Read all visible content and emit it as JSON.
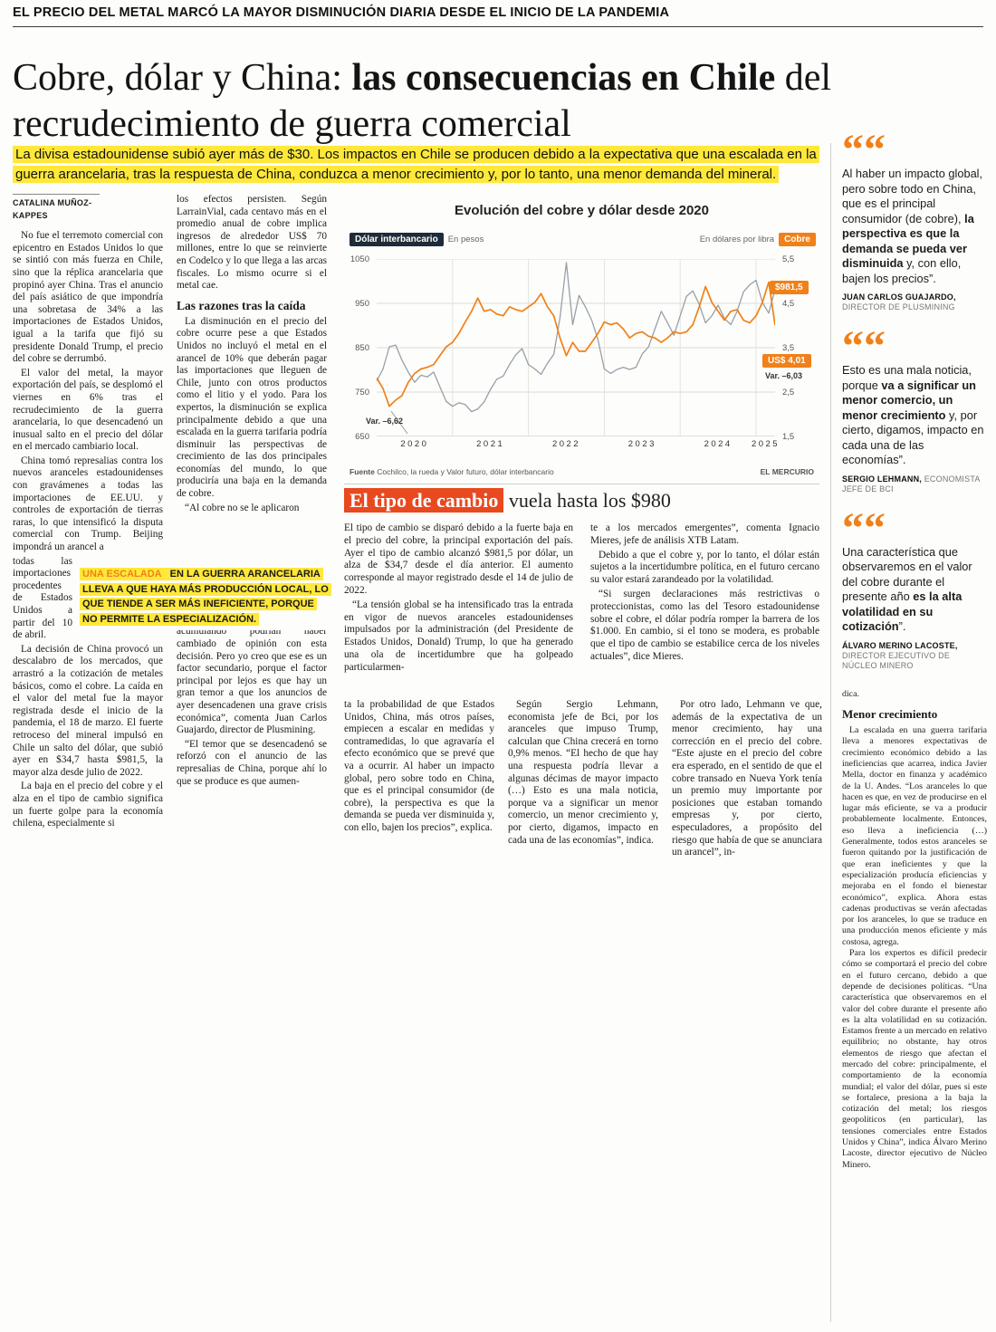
{
  "colors": {
    "accent_orange": "#f08019",
    "highlight_yellow": "#ffe83a",
    "title_red": "#e8491f",
    "dolar_gray": "#97a0a8"
  },
  "icons": {
    "quote": "“"
  },
  "page": {
    "kicker": "EL PRECIO DEL METAL MARCÓ LA MAYOR DISMINUCIÓN DIARIA DESDE EL INICIO DE LA PANDEMIA",
    "headline": {
      "part1": "Cobre, dólar y China: ",
      "part2": "las consecuencias en Chile",
      "part3": " del recrudecimiento de guerra comercial"
    },
    "lede": "La divisa estadounidense subió ayer más de $30. Los impactos en Chile se producen debido a la expectativa que una escalada en la guerra arancelaria, tras la respuesta de China, conduzca a menor crecimiento y, por lo tanto, una menor demanda del mineral.",
    "byline": "CATALINA MUÑOZ-KAPPES"
  },
  "article": {
    "col1": {
      "p1": "No fue el terremoto comercial con epicentro en Estados Unidos lo que se sintió con más fuerza en Chile, sino que la réplica arancelaria que propinó ayer China. Tras el anuncio del país asiático de que impondría una sobretasa de 34% a las importaciones de Estados Unidos, igual a la tarifa que fijó su presidente Donald Trump, el precio del cobre se derrumbó.",
      "p2": "El valor del metal, la mayor exportación del país, se desplomó el viernes en 6% tras el recrudecimiento de la guerra arancelaria, lo que desencadenó un inusual salto en el precio del dólar en el mercado cambiario local.",
      "p3a": "China tomó represalias contra los nuevos aranceles estadounidenses con gravámenes a todas las importaciones de EE.UU. y controles de exportación de tierras raras, lo que intensificó la disputa comercial con Trump. Beijing impondrá un arancel a",
      "p3b": "todas las importaciones procedentes de Estados Unidos a partir del 10 de abril.",
      "p4": "La decisión de China provocó un descalabro de los mercados, que arrastró a la cotización de metales básicos, como el cobre. La caída en el valor del metal fue la mayor registrada desde el inicio de la pandemia, el 18 de marzo. El fuerte retroceso del mineral impulsó en Chile un salto del dólar, que subió ayer en $34,7 hasta $981,5, la mayor alza desde julio de 2022.",
      "p5": "La baja en el precio del cobre y el alza en el tipo de cambio significa un fuerte golpe para la economía chilena, especialmente si"
    },
    "col2": {
      "p1": "los efectos persisten. Según LarrainVial, cada centavo más en el promedio anual de cobre implica ingresos de alrededor US$ 70 millones, entre lo que se reinvierte en Codelco y lo que llega a las arcas fiscales. Lo mismo ocurre si el metal cae.",
      "subhead": "Las razones tras la caída",
      "p2": "La disminución en el precio del cobre ocurre pese a que Estados Unidos no incluyó el metal en el arancel de 10% que deberán pagar las importaciones que lleguen de Chile, junto con otros productos como el litio y el yodo. Para los expertos, la disminución se explica principalmente debido a que una escalada en la guerra tarifaria podría disminuir las perspectivas de crecimiento de las dos principales economías del mundo, lo que produciría una baja en la demanda de cobre.",
      "p3": "“Al cobre no se le aplicaron",
      "p4": "aranceles, por lo tanto los compradores que estaban acumulando podrían haber cambiado de opinión con esta decisión. Pero yo creo que ese es un factor secundario, porque el factor principal por lejos es que hay un gran temor a que los anuncios de ayer desencadenen una grave crisis económica”, comenta Juan Carlos Guajardo, director de Plusmining.",
      "p5": "“El temor que se desencadenó se reforzó con el anuncio de las represalias de China, porque ahí lo que se produce es que aumen-"
    },
    "inset": {
      "highlight": "UNA ESCALADA",
      "rest": " EN LA GUERRA ARANCELARIA LLEVA A QUE HAYA MÁS PRODUCCIÓN LOCAL, LO QUE TIENDE A SER MÁS INEFICIENTE, PORQUE NO PERMITE LA ESPECIALIZACIÓN."
    },
    "cont1": "ta la probabilidad de que Estados Unidos, China, más otros países, empiecen a escalar en medidas y contramedidas, lo que agravaría el efecto económico que se prevé que va a ocurrir. Al haber un impacto global, pero sobre todo en China, que es el principal consumidor (de cobre), la perspectiva es que la demanda se pueda ver disminuida y, con ello, bajen los precios”, explica.",
    "cont2": "Según Sergio Lehmann, economista jefe de Bci, por los aranceles que impuso Trump, calculan que China crecerá en torno 0,9% menos. “El hecho de que hay una respuesta podría llevar a algunas décimas de mayor impacto (…) Esto es una mala noticia, porque va a significar un menor comercio, un menor crecimiento y, por cierto, digamos, impacto en cada una de las economías”, indica.",
    "cont3": "Por otro lado, Lehmann ve que, además de la expectativa de un menor crecimiento, hay una corrección en el precio del cobre. “Este ajuste en el precio del cobre era esperado, en el sentido de que el cobre transado en Nueva York tenía un premio muy importante por posiciones que estaban tomando empresas y, por cierto, especuladores, a propósito del riesgo que había de que se anunciara un arancel”, in-"
  },
  "chart": {
    "title": "Evolución del cobre y dólar desde 2020",
    "legend_left": {
      "label": "Dólar interbancario",
      "sub": "En pesos"
    },
    "legend_right": {
      "sub": "En dólares por libra",
      "label": "Cobre"
    },
    "callout_dolar": "$981,5",
    "callout_cobre": "US$ 4,01",
    "var_cobre": "Var. –6,03",
    "var_2020": "Var. –6,62",
    "source_bold": "Fuente",
    "source_rest": " Cochilco, la rueda y Valor futuro, dólar interbancario",
    "credit": "EL MERCURIO"
  },
  "chart_data": {
    "type": "line",
    "title": "Evolución del cobre y dólar desde 2020",
    "x_ticks": [
      "2020",
      "2021",
      "2022",
      "2023",
      "2024",
      "2025"
    ],
    "points_per_year": 12,
    "axis_left": {
      "label": "En pesos",
      "min": 650,
      "max": 1050,
      "tick_values": [
        1050,
        950,
        850,
        750,
        650
      ],
      "tick_labels": [
        "1050",
        "950",
        "850",
        "750",
        "650"
      ]
    },
    "axis_right": {
      "label": "En dólares por libra",
      "min": 1.5,
      "max": 5.5,
      "tick_values": [
        5.5,
        4.5,
        3.5,
        2.5,
        1.5
      ],
      "tick_labels": [
        "5,5",
        "4,5",
        "3,5",
        "2,5",
        "1,5"
      ]
    },
    "grid": true,
    "legend_position": "top",
    "annotations": [
      {
        "text": "Var. –6,62",
        "target": "Cobre caída 18 de marzo de 2020"
      },
      {
        "text": "Var. –6,03",
        "target": "Cobre variación diaria actual"
      }
    ],
    "series": [
      {
        "name": "Dólar interbancario",
        "axis": "left",
        "color": "#97a0a8",
        "width": 1.3,
        "last_value_label": "$981,5",
        "values": [
          775,
          802,
          852,
          856,
          822,
          795,
          772,
          788,
          784,
          795,
          762,
          729,
          718,
          726,
          722,
          706,
          712,
          728,
          756,
          779,
          786,
          812,
          834,
          848,
          812,
          802,
          790,
          815,
          835,
          918,
          1042,
          902,
          968,
          942,
          912,
          868,
          802,
          792,
          801,
          806,
          801,
          806,
          836,
          852,
          892,
          932,
          906,
          878,
          922,
          966,
          978,
          948,
          906,
          922,
          946,
          916,
          902,
          932,
          976,
          992,
          1002,
          952,
          928,
          981.5
        ]
      },
      {
        "name": "Cobre",
        "axis": "right",
        "color": "#f08019",
        "width": 1.7,
        "last_value_label": "US$ 4,01",
        "values": [
          2.82,
          2.58,
          2.18,
          2.32,
          2.42,
          2.72,
          2.92,
          3.02,
          3.06,
          3.12,
          3.32,
          3.52,
          3.62,
          3.82,
          4.08,
          4.32,
          4.62,
          4.32,
          4.36,
          4.26,
          4.22,
          4.42,
          4.36,
          4.32,
          4.42,
          4.52,
          4.72,
          4.42,
          4.22,
          3.72,
          3.32,
          3.62,
          3.42,
          3.42,
          3.62,
          3.82,
          4.08,
          4.02,
          4.06,
          3.92,
          3.72,
          3.82,
          3.86,
          3.76,
          3.72,
          3.62,
          3.72,
          3.86,
          3.82,
          3.86,
          4.02,
          4.42,
          4.88,
          4.52,
          4.32,
          4.12,
          4.32,
          4.36,
          4.12,
          4.06,
          4.22,
          4.52,
          4.98,
          4.01
        ]
      }
    ]
  },
  "subarticle": {
    "title_highlight": "El tipo de cambio",
    "title_rest": " vuela hasta los $980",
    "col1a": "El tipo de cambio se disparó debido a la fuerte baja en el precio del cobre, la principal exportación del país. Ayer el tipo de cambio alcanzó $981,5 por dólar, un alza de $34,7 desde el día anterior. El aumento corresponde al mayor registrado desde el 14 de julio de 2022.",
    "col1b": "“La tensión global se ha intensificado tras la entrada en vigor de nuevos aranceles estadounidenses impulsados por la administración (del Presidente de Estados Unidos, Donald) Trump, lo que ha generado una ola de incertidumbre que ha golpeado particularmen-",
    "col2a": "te a los mercados emergentes”, comenta Ignacio Mieres, jefe de análisis XTB Latam.",
    "col2b": "Debido a que el cobre y, por lo tanto, el dólar están sujetos a la incertidumbre política, en el futuro cercano su valor estará zarandeado por la volatilidad.",
    "col2c": "“Si surgen declaraciones más restrictivas o proteccionistas, como las del Tesoro estadounidense sobre el cobre, el dólar podría romper la barrera de los $1.000. En cambio, si el tono se modera, es probable que el tipo de cambio se estabilice cerca de los niveles actuales”, dice Mieres."
  },
  "quotes": [
    {
      "pre": "Al haber un impacto global, pero sobre todo en China, que es el principal consumidor (de cobre), ",
      "bold": "la perspectiva es que la demanda se pueda ver disminuida",
      "post": " y, con ello, bajen los precios”.",
      "name": "JUAN CARLOS GUAJARDO,",
      "role": " DIRECTOR DE PLUSMINING"
    },
    {
      "pre": "Esto es una mala noticia, porque ",
      "bold": "va a significar un menor comercio, un menor crecimiento",
      "post": " y, por cierto, digamos, impacto en cada una de las economías”.",
      "name": "SERGIO LEHMANN,",
      "role": " ECONOMISTA JEFE DE BCI"
    },
    {
      "pre": "Una característica que observaremos en el valor del cobre durante el presente año ",
      "bold": "es la alta volatilidad en su cotización",
      "post": "”.",
      "name": "ÁLVARO MERINO LACOSTE,",
      "role": " DIRECTOR EJECUTIVO DE NÚCLEO MINERO"
    }
  ],
  "sidebar_bottom": {
    "cont": "dica.",
    "subhead": "Menor crecimiento",
    "p1": "La escalada en una guerra tarifaria lleva a menores expectativas de crecimiento económico debido a las ineficiencias que acarrea, indica Javier Mella, doctor en finanza y académico de la U. Andes. “Los aranceles lo que hacen es que, en vez de producirse en el lugar más eficiente, se va a producir probablemente localmente. Entonces, eso lleva a ineficiencia (…) Generalmente, todos estos aranceles se fueron quitando por la justificación de que eran ineficientes y que la especialización producía eficiencias y mejoraba en el fondo el bienestar económico”, explica. Ahora estas cadenas productivas se verán afectadas por los aranceles, lo que se traduce en una producción menos eficiente y más costosa, agrega.",
    "p2": "Para los expertos es difícil predecir cómo se comportará el precio del cobre en el futuro cercano, debido a que depende de decisiones políticas. “Una característica que observaremos en el valor del cobre durante el presente año es la alta volatilidad en su cotización. Estamos frente a un mercado en relativo equilibrio; no obstante, hay otros elementos de riesgo que afectan el mercado del cobre: principalmente, el comportamiento de la economía mundial; el valor del dólar, pues si este se fortalece, presiona a la baja la cotización del metal; los riesgos geopolíticos (en particular), las tensiones comerciales entre Estados Unidos y China”, indica Álvaro Merino Lacoste, director ejecutivo de Núcleo Minero."
  }
}
